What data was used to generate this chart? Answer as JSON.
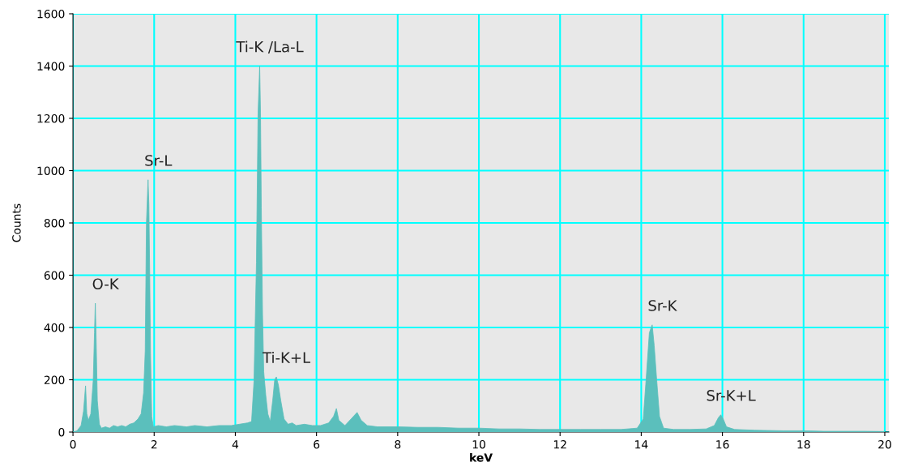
{
  "chart_data": {
    "type": "area",
    "xlabel": "keV",
    "ylabel": "Counts",
    "xlim": [
      0,
      20.1
    ],
    "xticks": [
      0,
      2,
      4,
      6,
      8,
      10,
      12,
      14,
      16,
      18,
      20
    ],
    "ylim": [
      0,
      1600
    ],
    "yticks": [
      0,
      200,
      400,
      600,
      800,
      1000,
      1200,
      1400,
      1600
    ],
    "grid": true,
    "x": [
      0.0,
      0.1,
      0.2,
      0.26,
      0.31,
      0.34,
      0.38,
      0.44,
      0.5,
      0.53,
      0.55,
      0.57,
      0.6,
      0.65,
      0.7,
      0.8,
      0.9,
      1.0,
      1.1,
      1.2,
      1.3,
      1.4,
      1.5,
      1.6,
      1.68,
      1.74,
      1.78,
      1.81,
      1.85,
      1.87,
      1.89,
      1.91,
      1.94,
      1.98,
      2.1,
      2.3,
      2.5,
      2.8,
      3.0,
      3.3,
      3.6,
      3.9,
      4.1,
      4.3,
      4.4,
      4.46,
      4.52,
      4.56,
      4.6,
      4.62,
      4.64,
      4.67,
      4.7,
      4.75,
      4.8,
      4.86,
      4.92,
      4.97,
      5.01,
      5.06,
      5.12,
      5.2,
      5.3,
      5.4,
      5.5,
      5.7,
      5.9,
      6.1,
      6.3,
      6.42,
      6.49,
      6.55,
      6.7,
      6.85,
      7.0,
      7.1,
      7.25,
      7.5,
      8.0,
      8.5,
      9.0,
      9.5,
      10.0,
      10.5,
      11.0,
      11.5,
      12.0,
      12.5,
      13.0,
      13.5,
      13.9,
      14.05,
      14.12,
      14.2,
      14.27,
      14.32,
      14.38,
      14.45,
      14.55,
      14.8,
      15.2,
      15.6,
      15.8,
      15.9,
      15.96,
      16.02,
      16.1,
      16.3,
      16.8,
      17.5,
      18.0,
      18.5,
      19.0,
      19.5,
      20.0
    ],
    "series": [
      {
        "color": "#5bbfbc",
        "values": [
          0,
          5,
          25,
          80,
          177,
          70,
          45,
          70,
          200,
          380,
          493,
          360,
          120,
          30,
          15,
          20,
          15,
          25,
          20,
          25,
          20,
          30,
          35,
          50,
          70,
          150,
          310,
          800,
          965,
          870,
          610,
          300,
          60,
          20,
          25,
          20,
          25,
          20,
          25,
          20,
          25,
          25,
          30,
          35,
          40,
          195,
          650,
          1220,
          1400,
          1220,
          860,
          450,
          230,
          140,
          70,
          40,
          120,
          200,
          211,
          180,
          120,
          50,
          30,
          35,
          25,
          30,
          25,
          25,
          35,
          60,
          90,
          45,
          25,
          50,
          75,
          45,
          25,
          20,
          20,
          18,
          18,
          15,
          15,
          12,
          12,
          10,
          10,
          10,
          10,
          10,
          15,
          50,
          200,
          380,
          410,
          330,
          200,
          60,
          15,
          10,
          10,
          12,
          25,
          55,
          66,
          50,
          20,
          10,
          7,
          5,
          5,
          3,
          3,
          3,
          2
        ]
      }
    ],
    "annotations": [
      {
        "text": "O-K",
        "x": 0.55,
        "y": 493
      },
      {
        "text": "Sr-L",
        "x": 1.85,
        "y": 965
      },
      {
        "text": "Ti-K /La-L",
        "x": 4.6,
        "y": 1400
      },
      {
        "text": "Ti-K+L",
        "x": 5.01,
        "y": 211
      },
      {
        "text": "Sr-K",
        "x": 14.27,
        "y": 410
      },
      {
        "text": "Sr-K+L",
        "x": 15.96,
        "y": 66
      }
    ]
  }
}
